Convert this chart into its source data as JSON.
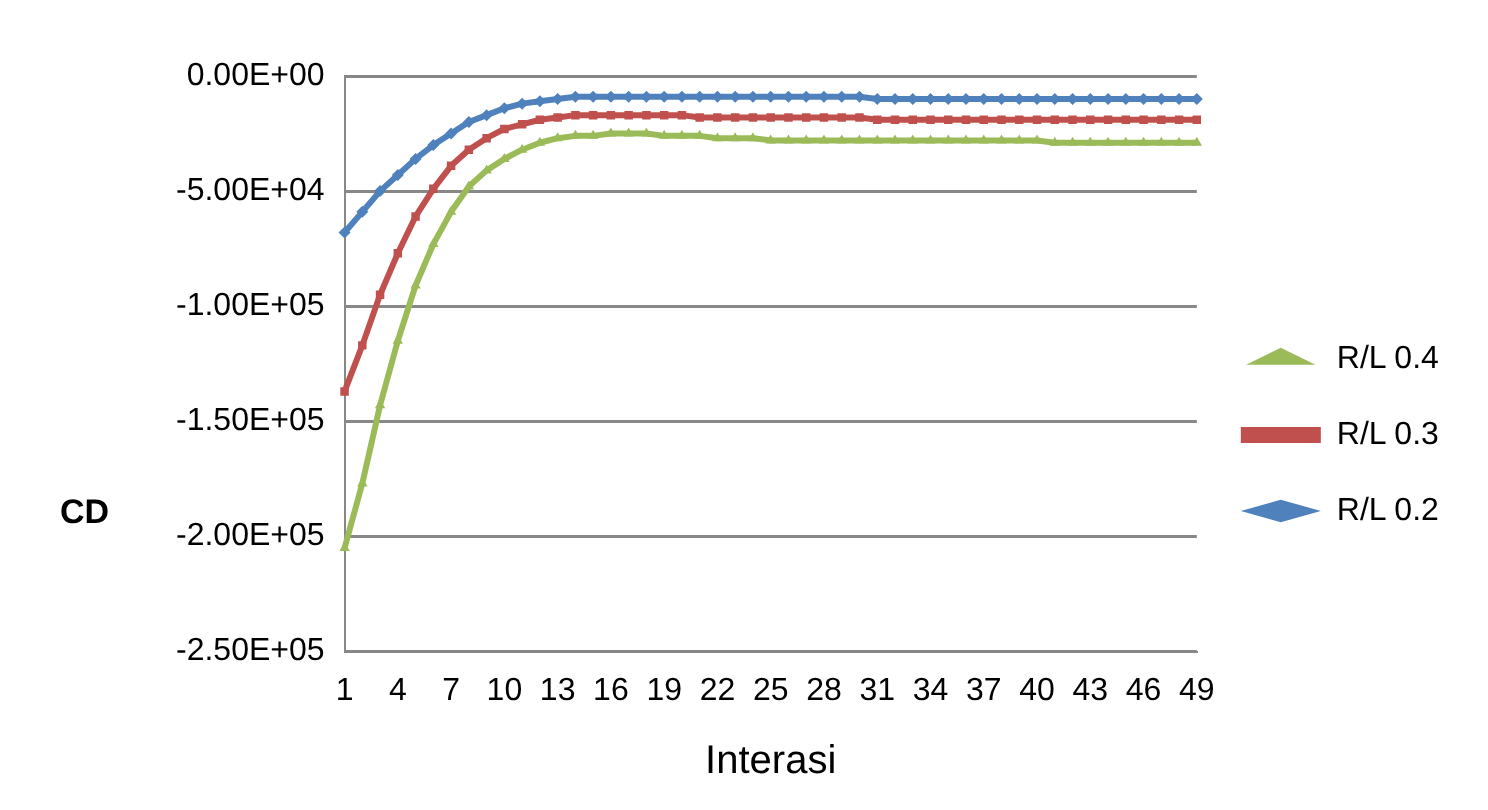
{
  "chart_data": {
    "type": "line",
    "xlabel": "Interasi",
    "ylabel": "CD",
    "categories": [
      "1",
      null,
      null,
      "4",
      null,
      null,
      "7",
      null,
      null,
      "10",
      null,
      null,
      "13",
      null,
      null,
      "16",
      null,
      null,
      "19",
      null,
      null,
      "22",
      null,
      null,
      "25",
      null,
      null,
      "28",
      null,
      null,
      "31",
      null,
      null,
      "34",
      null,
      null,
      "37",
      null,
      null,
      "40",
      null,
      null,
      "43",
      null,
      null,
      "46",
      null,
      null,
      "49"
    ],
    "series": [
      {
        "name": "R/L 0.4",
        "color": "#9bbb59",
        "marker": "triangle",
        "values": [
          -205000,
          -177000,
          -143000,
          -115000,
          -91000,
          -73000,
          -59000,
          -48000,
          -41000,
          -36000,
          -32000,
          -29000,
          -27000,
          -26000,
          -26000,
          -25000,
          -25000,
          -25000,
          -26000,
          -26000,
          -26000,
          -27000,
          -27000,
          -27000,
          -28000,
          -28000,
          -28000,
          -28000,
          -28000,
          -28000,
          -28000,
          -28000,
          -28000,
          -28000,
          -28000,
          -28000,
          -28000,
          -28000,
          -28000,
          -28000,
          -29000,
          -29000,
          -29000,
          -29000,
          -29000,
          -29000,
          -29000,
          -29000,
          -29000
        ]
      },
      {
        "name": "R/L 0.3",
        "color": "#c0504d",
        "marker": "square",
        "values": [
          -137000,
          -117000,
          -95000,
          -77000,
          -61000,
          -49000,
          -39000,
          -32000,
          -27000,
          -23000,
          -21000,
          -19000,
          -18000,
          -17000,
          -17000,
          -17000,
          -17000,
          -17000,
          -17000,
          -17000,
          -18000,
          -18000,
          -18000,
          -18000,
          -18000,
          -18000,
          -18000,
          -18000,
          -18000,
          -18000,
          -19000,
          -19000,
          -19000,
          -19000,
          -19000,
          -19000,
          -19000,
          -19000,
          -19000,
          -19000,
          -19000,
          -19000,
          -19000,
          -19000,
          -19000,
          -19000,
          -19000,
          -19000,
          -19000
        ]
      },
      {
        "name": "R/L 0.2",
        "color": "#4f81bd",
        "marker": "diamond",
        "values": [
          -68000,
          -59000,
          -50000,
          -43000,
          -36000,
          -30000,
          -25000,
          -20000,
          -17000,
          -14000,
          -12000,
          -11000,
          -10000,
          -9000,
          -9000,
          -9000,
          -9000,
          -9000,
          -9000,
          -9000,
          -9000,
          -9000,
          -9000,
          -9000,
          -9000,
          -9000,
          -9000,
          -9000,
          -9000,
          -9000,
          -10000,
          -10000,
          -10000,
          -10000,
          -10000,
          -10000,
          -10000,
          -10000,
          -10000,
          -10000,
          -10000,
          -10000,
          -10000,
          -10000,
          -10000,
          -10000,
          -10000,
          -10000,
          -10000
        ]
      }
    ],
    "ylim": [
      -250000,
      0
    ],
    "yticks": [
      {
        "value": 0,
        "label": "0.00E+00"
      },
      {
        "value": -50000,
        "label": "-5.00E+04"
      },
      {
        "value": -100000,
        "label": "-1.00E+05"
      },
      {
        "value": -150000,
        "label": "-1.50E+05"
      },
      {
        "value": -200000,
        "label": "-2.00E+05"
      },
      {
        "value": -250000,
        "label": "-2.50E+05"
      }
    ],
    "grid": "y",
    "legend": "right",
    "line_style": "solid"
  }
}
